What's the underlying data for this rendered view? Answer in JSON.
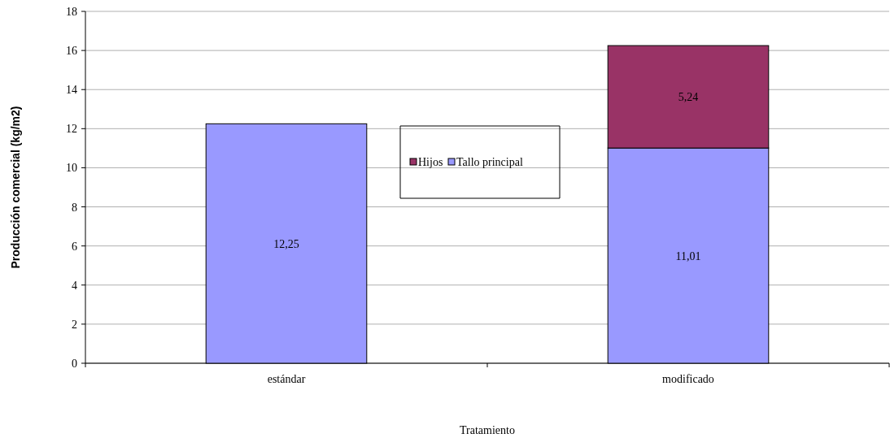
{
  "chart_data": {
    "type": "bar",
    "stacked": true,
    "xlabel": "Tratamiento",
    "ylabel": "Producción comercial (kg/m2)",
    "categories": [
      "estándar",
      "modificado"
    ],
    "series": [
      {
        "name": "Tallo principal",
        "color": "#9999ff",
        "values": [
          12.25,
          11.01
        ],
        "value_labels": [
          "12,25",
          "11,01"
        ]
      },
      {
        "name": "Hijos",
        "color": "#993366",
        "values": [
          null,
          5.24
        ],
        "value_labels": [
          null,
          "5,24"
        ]
      }
    ],
    "ylim": [
      0,
      18
    ],
    "yticks": [
      0,
      2,
      4,
      6,
      8,
      10,
      12,
      14,
      16,
      18
    ],
    "grid": "y",
    "legend": "center"
  }
}
